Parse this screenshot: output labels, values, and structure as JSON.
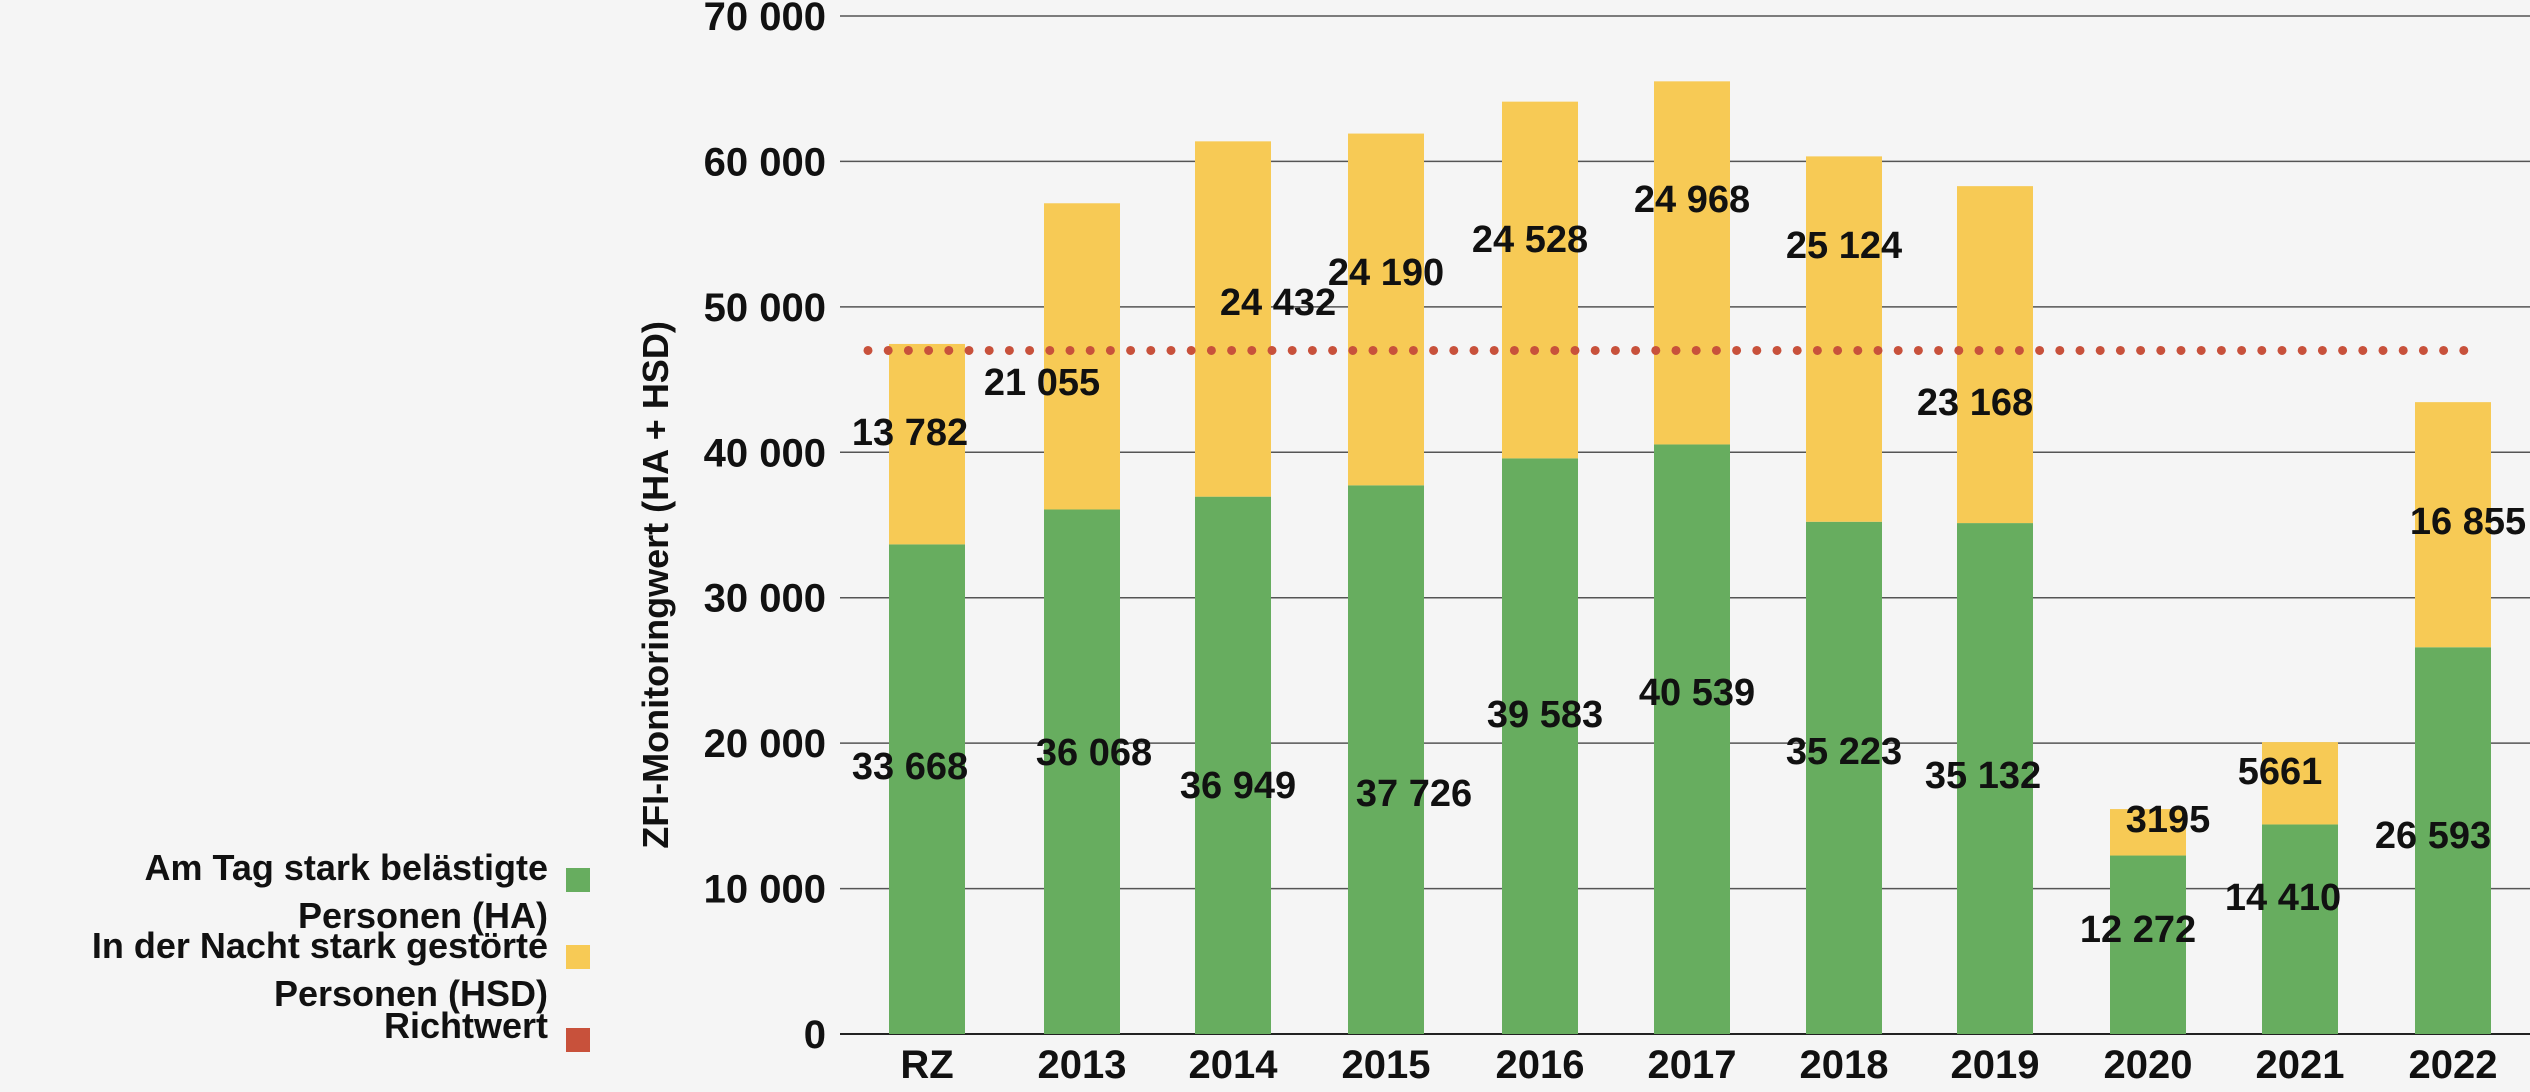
{
  "chart_data": {
    "type": "bar",
    "stacked": true,
    "title": "",
    "xlabel": "",
    "ylabel": "ZFI-Monitoringwert (HA + HSD)",
    "ylim": [
      0,
      70000
    ],
    "yticks": [
      0,
      10000,
      20000,
      30000,
      40000,
      50000,
      60000,
      70000
    ],
    "ytick_labels": [
      "0",
      "10 000",
      "20 000",
      "30 000",
      "40 000",
      "50 000",
      "60 000",
      "70 000"
    ],
    "categories": [
      "RZ",
      "2013",
      "2014",
      "2015",
      "2016",
      "2017",
      "2018",
      "2019",
      "2020",
      "2021",
      "2022"
    ],
    "series": [
      {
        "name": "Am Tag stark belästigte Personen (HA)",
        "color": "#67ad5f",
        "values": [
          33668,
          36068,
          36949,
          37726,
          39583,
          40539,
          35223,
          35132,
          12272,
          14410,
          26593
        ],
        "labels": [
          "33 668",
          "36 068",
          "36 949",
          "37 726",
          "39 583",
          "40 539",
          "35 223",
          "35 132",
          "12 272",
          "14 410",
          "26 593"
        ]
      },
      {
        "name": "In der Nacht stark gestörte Personen (HSD)",
        "color": "#f7ca55",
        "values": [
          13782,
          21055,
          24432,
          24190,
          24528,
          24968,
          25124,
          23168,
          3195,
          5661,
          16855
        ],
        "labels": [
          "13 782",
          "21 055",
          "24 432",
          "24 190",
          "24 528",
          "24 968",
          "25 124",
          "23 168",
          "3195",
          "5661",
          "16 855"
        ]
      }
    ],
    "reference_line": {
      "name": "Richtwert",
      "value": 47000,
      "color": "#c8513b",
      "style": "dotted"
    },
    "grid": true,
    "legend": {
      "position": "bottom-left",
      "entries": [
        {
          "lines": [
            "Am Tag stark belästigte",
            "Personen (HA)"
          ],
          "color": "#67ad5f"
        },
        {
          "lines": [
            "In der Nacht stark gestörte",
            "Personen (HSD)"
          ],
          "color": "#f7ca55"
        },
        {
          "lines": [
            "Richtwert"
          ],
          "color": "#c8513b"
        }
      ]
    }
  }
}
